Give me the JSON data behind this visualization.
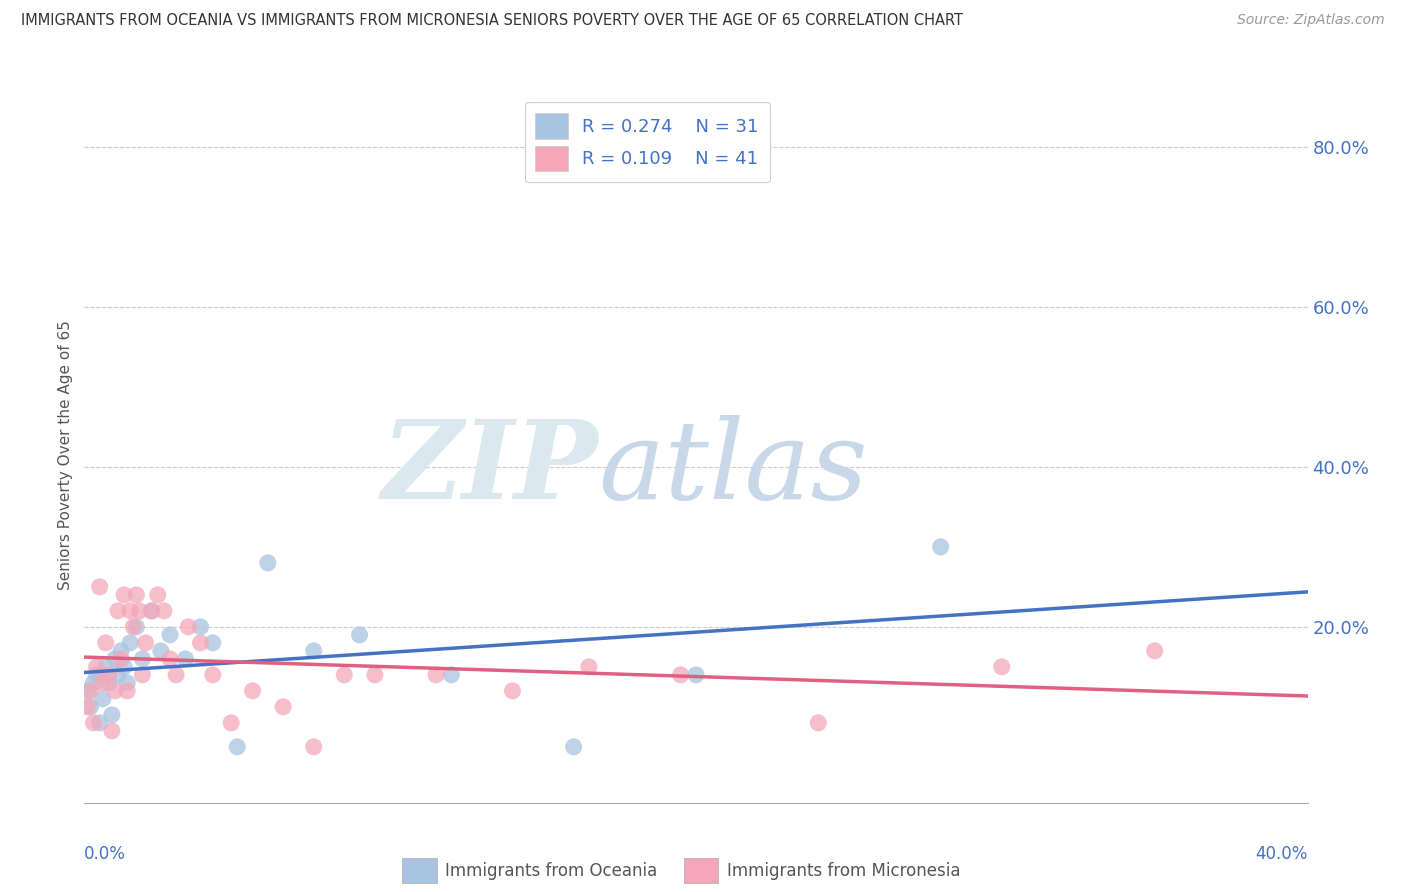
{
  "title": "IMMIGRANTS FROM OCEANIA VS IMMIGRANTS FROM MICRONESIA SENIORS POVERTY OVER THE AGE OF 65 CORRELATION CHART",
  "source": "Source: ZipAtlas.com",
  "ylabel": "Seniors Poverty Over the Age of 65",
  "legend_label1": "Immigrants from Oceania",
  "legend_label2": "Immigrants from Micronesia",
  "R1": 0.274,
  "N1": 31,
  "R2": 0.109,
  "N2": 41,
  "xlim": [
    0.0,
    0.4
  ],
  "ylim": [
    -0.02,
    0.85
  ],
  "yticks": [
    0.0,
    0.2,
    0.4,
    0.6,
    0.8
  ],
  "ytick_labels": [
    "",
    "20.0%",
    "40.0%",
    "60.0%",
    "80.0%"
  ],
  "color_oceania": "#a8c4e0",
  "color_micronesia": "#f4a7b9",
  "line_color_oceania": "#4472c4",
  "line_color_micronesia": "#e06080",
  "oceania_x": [
    0.001,
    0.002,
    0.003,
    0.004,
    0.005,
    0.006,
    0.007,
    0.008,
    0.009,
    0.01,
    0.011,
    0.012,
    0.013,
    0.014,
    0.015,
    0.017,
    0.019,
    0.022,
    0.025,
    0.028,
    0.033,
    0.038,
    0.042,
    0.05,
    0.06,
    0.075,
    0.09,
    0.12,
    0.16,
    0.2,
    0.28
  ],
  "oceania_y": [
    0.12,
    0.1,
    0.13,
    0.14,
    0.08,
    0.11,
    0.15,
    0.13,
    0.09,
    0.16,
    0.14,
    0.17,
    0.15,
    0.13,
    0.18,
    0.2,
    0.16,
    0.22,
    0.17,
    0.19,
    0.16,
    0.2,
    0.18,
    0.05,
    0.28,
    0.17,
    0.19,
    0.14,
    0.05,
    0.14,
    0.3
  ],
  "micronesia_x": [
    0.001,
    0.002,
    0.003,
    0.004,
    0.005,
    0.006,
    0.007,
    0.008,
    0.009,
    0.01,
    0.011,
    0.012,
    0.013,
    0.014,
    0.015,
    0.016,
    0.017,
    0.018,
    0.019,
    0.02,
    0.022,
    0.024,
    0.026,
    0.028,
    0.03,
    0.034,
    0.038,
    0.042,
    0.048,
    0.055,
    0.065,
    0.075,
    0.085,
    0.095,
    0.115,
    0.14,
    0.165,
    0.195,
    0.24,
    0.3,
    0.35
  ],
  "micronesia_y": [
    0.1,
    0.12,
    0.08,
    0.15,
    0.25,
    0.13,
    0.18,
    0.14,
    0.07,
    0.12,
    0.22,
    0.16,
    0.24,
    0.12,
    0.22,
    0.2,
    0.24,
    0.22,
    0.14,
    0.18,
    0.22,
    0.24,
    0.22,
    0.16,
    0.14,
    0.2,
    0.18,
    0.14,
    0.08,
    0.12,
    0.1,
    0.05,
    0.14,
    0.14,
    0.14,
    0.12,
    0.15,
    0.14,
    0.08,
    0.15,
    0.17
  ]
}
